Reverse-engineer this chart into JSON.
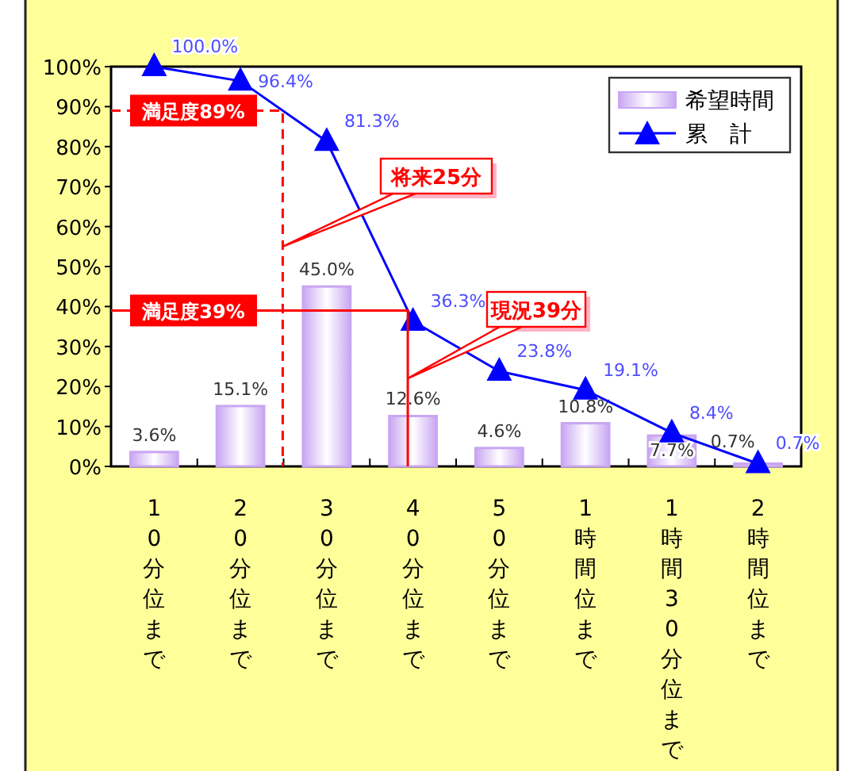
{
  "chart_data": {
    "type": "bar",
    "categories": [
      "10分位まで",
      "20分位まで",
      "30分位まで",
      "40分位まで",
      "50分位まで",
      "1時間位まで",
      "1時間30分位まで",
      "2時間位まで"
    ],
    "series": [
      {
        "name": "希望時間",
        "type": "bar",
        "color": "#c9a6f2",
        "values": [
          3.6,
          15.1,
          45.0,
          12.6,
          4.6,
          10.8,
          7.7,
          0.7
        ],
        "value_labels": [
          "3.6%",
          "15.1%",
          "45.0%",
          "12.6%",
          "4.6%",
          "10.8%",
          "7.7%",
          "0.7%"
        ]
      },
      {
        "name": "累　計",
        "type": "line",
        "color": "#0000ff",
        "marker": "triangle",
        "values": [
          100.0,
          96.4,
          81.3,
          36.3,
          23.8,
          19.1,
          8.4,
          0.7
        ],
        "value_labels": [
          "100.0%",
          "96.4%",
          "81.3%",
          "36.3%",
          "23.8%",
          "19.1%",
          "8.4%",
          "0.7%"
        ]
      }
    ],
    "ylim": [
      0,
      100
    ],
    "yticks": [
      {
        "value": 0,
        "label": "0%"
      },
      {
        "value": 10,
        "label": "10%"
      },
      {
        "value": 20,
        "label": "20%"
      },
      {
        "value": 30,
        "label": "30%"
      },
      {
        "value": 40,
        "label": "40%"
      },
      {
        "value": 50,
        "label": "50%"
      },
      {
        "value": 60,
        "label": "60%"
      },
      {
        "value": 70,
        "label": "70%"
      },
      {
        "value": 80,
        "label": "80%"
      },
      {
        "value": 90,
        "label": "90%"
      },
      {
        "value": 100,
        "label": "100%"
      }
    ],
    "ref_lines": [
      {
        "axis": "y",
        "value": 89,
        "label": "満足度89%",
        "color": "#ff0000",
        "line_style": "dashed"
      },
      {
        "axis": "y",
        "value": 39,
        "label": "満足度39%",
        "color": "#ff0000",
        "line_style": "solid"
      }
    ],
    "annotations": [
      "将来25分",
      "現況39分"
    ],
    "legend": "top right",
    "grid": false
  }
}
